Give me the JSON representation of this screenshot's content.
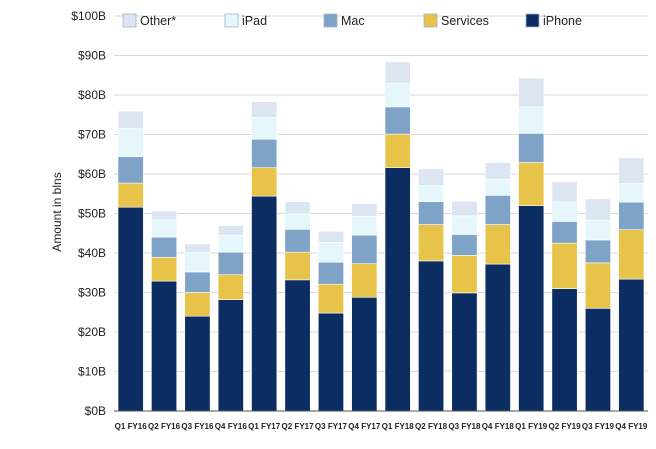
{
  "chart_data": {
    "type": "stacked-bar",
    "title": "",
    "xlabel": "",
    "ylabel": "Amount in blns",
    "ylim": [
      0,
      100
    ],
    "yticks": [
      0,
      10,
      20,
      30,
      40,
      50,
      60,
      70,
      80,
      90,
      100
    ],
    "ytick_labels": [
      "$0B",
      "$10B",
      "$20B",
      "$30B",
      "$40B",
      "$50B",
      "$60B",
      "$70B",
      "$80B",
      "$90B",
      "$100B"
    ],
    "grid": true,
    "legend_position": "top",
    "categories": [
      "Q1 FY16",
      "Q2 FY16",
      "Q3 FY16",
      "Q4 FY16",
      "Q1 FY17",
      "Q2 FY17",
      "Q3 FY17",
      "Q4 FY17",
      "Q1 FY18",
      "Q2 FY18",
      "Q3 FY18",
      "Q4 FY18",
      "Q1 FY19",
      "Q2 FY19",
      "Q3 FY19",
      "Q4 FY19"
    ],
    "legend": [
      {
        "name": "Other*",
        "color": "#dce6f2"
      },
      {
        "name": "iPad",
        "color": "#e6f7fc"
      },
      {
        "name": "Mac",
        "color": "#7fa3c6"
      },
      {
        "name": "Services",
        "color": "#e8c34a"
      },
      {
        "name": "iPhone",
        "color": "#0c2d62"
      }
    ],
    "series": [
      {
        "name": "iPhone",
        "color": "#0c2d62",
        "values": [
          51.6,
          32.9,
          24.0,
          28.2,
          54.4,
          33.2,
          24.8,
          28.8,
          61.6,
          38.0,
          29.9,
          37.2,
          52.0,
          31.0,
          26.0,
          33.4
        ]
      },
      {
        "name": "Services",
        "color": "#e8c34a",
        "values": [
          6.1,
          6.0,
          6.0,
          6.3,
          7.2,
          7.0,
          7.3,
          8.5,
          8.5,
          9.2,
          9.5,
          10.0,
          10.9,
          11.5,
          11.5,
          12.5
        ]
      },
      {
        "name": "Mac",
        "color": "#7fa3c6",
        "values": [
          6.7,
          5.1,
          5.2,
          5.7,
          7.2,
          5.8,
          5.6,
          7.2,
          6.9,
          5.8,
          5.3,
          7.4,
          7.4,
          5.5,
          5.8,
          7.0
        ]
      },
      {
        "name": "iPad",
        "color": "#e6f7fc",
        "values": [
          7.1,
          4.4,
          4.9,
          4.3,
          5.5,
          3.9,
          5.0,
          4.8,
          5.9,
          4.1,
          4.7,
          4.1,
          6.7,
          4.9,
          5.0,
          4.7
        ]
      },
      {
        "name": "Other*",
        "color": "#dce6f2",
        "values": [
          4.4,
          2.2,
          2.2,
          2.4,
          4.0,
          3.1,
          2.8,
          3.2,
          5.5,
          4.2,
          3.7,
          4.2,
          7.3,
          5.1,
          5.4,
          6.5
        ]
      }
    ]
  }
}
